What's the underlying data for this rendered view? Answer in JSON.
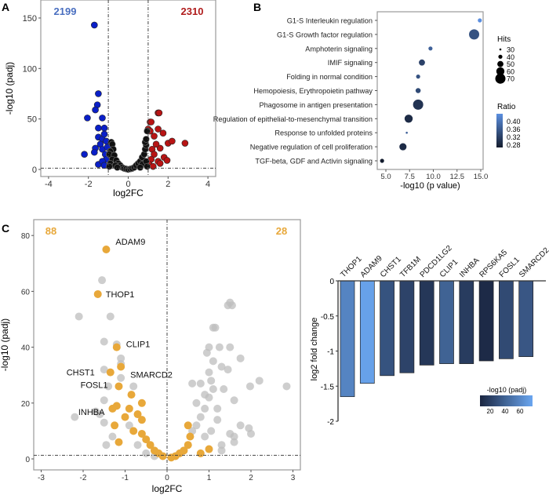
{
  "panels": {
    "a": "A",
    "b": "B",
    "c": "C"
  },
  "chart_data": [
    {
      "type": "scatter",
      "panel": "A",
      "xlabel": "log2FC",
      "ylabel": "-log10 (padj)",
      "xlim": [
        -4.4,
        4.4
      ],
      "ylim": [
        -7,
        168
      ],
      "xticks": [
        "-4",
        "-2",
        "0",
        "2",
        "4"
      ],
      "xtick_values": [
        -4,
        -2,
        0,
        2,
        4
      ],
      "yticks": [
        "0",
        "50",
        "100",
        "150"
      ],
      "ytick_values": [
        0,
        50,
        100,
        150
      ],
      "thresholds": {
        "log2fc": [
          -1,
          1
        ],
        "neg_log10_padj": 1.3
      },
      "annotations": [
        {
          "text": "2199",
          "color": "#4a6fc0"
        },
        {
          "text": "2310",
          "color": "#b01c1c"
        }
      ],
      "series": [
        {
          "color": "#0a1fc8",
          "points": [
            [
              -1.7,
              143
            ],
            [
              -1.5,
              75
            ],
            [
              -1.55,
              64
            ],
            [
              -1.65,
              59
            ],
            [
              -2.05,
              51
            ],
            [
              -1.3,
              51
            ],
            [
              -1.5,
              41
            ],
            [
              -1.2,
              41
            ],
            [
              -1.5,
              32
            ],
            [
              -1.3,
              30
            ],
            [
              -1.65,
              21
            ],
            [
              -1.7,
              17
            ],
            [
              -2.2,
              15
            ],
            [
              -1.5,
              5
            ],
            [
              -1.4,
              25
            ],
            [
              -1.2,
              35
            ],
            [
              -1.1,
              28
            ],
            [
              -1.3,
              20
            ],
            [
              -1.15,
              15
            ],
            [
              -1.1,
              10
            ],
            [
              -1.3,
              8
            ],
            [
              -1.05,
              22
            ],
            [
              -1.2,
              4
            ]
          ]
        },
        {
          "color": "#b81414",
          "points": [
            [
              1.5,
              56
            ],
            [
              1.55,
              56
            ],
            [
              1.1,
              47
            ],
            [
              1.15,
              47
            ],
            [
              1.0,
              40
            ],
            [
              1.1,
              38
            ],
            [
              1.5,
              40
            ],
            [
              1.75,
              36
            ],
            [
              1.3,
              33
            ],
            [
              2.0,
              26
            ],
            [
              2.2,
              28
            ],
            [
              2.85,
              26
            ],
            [
              1.6,
              21
            ],
            [
              1.8,
              12
            ],
            [
              1.95,
              9
            ],
            [
              1.5,
              8
            ],
            [
              1.4,
              25
            ],
            [
              1.2,
              20
            ],
            [
              1.3,
              15
            ],
            [
              1.15,
              10
            ],
            [
              1.05,
              5
            ],
            [
              1.6,
              6
            ],
            [
              1.25,
              3
            ]
          ]
        },
        {
          "color": "#111111",
          "points": [
            [
              -0.85,
              27
            ],
            [
              -0.8,
              25
            ],
            [
              -0.75,
              20
            ],
            [
              -0.9,
              18
            ],
            [
              -0.95,
              15
            ],
            [
              -0.7,
              14
            ],
            [
              -0.8,
              10
            ],
            [
              -0.6,
              9
            ],
            [
              -0.9,
              6
            ],
            [
              -0.5,
              6
            ],
            [
              -0.4,
              4
            ],
            [
              -0.65,
              4
            ],
            [
              -0.3,
              2
            ],
            [
              -0.2,
              1
            ],
            [
              -0.1,
              0.5
            ],
            [
              0,
              0
            ],
            [
              0.1,
              0.5
            ],
            [
              0.2,
              1
            ],
            [
              0.3,
              2
            ],
            [
              0.4,
              4
            ],
            [
              0.5,
              6
            ],
            [
              0.6,
              8
            ],
            [
              0.7,
              12
            ],
            [
              0.8,
              15
            ],
            [
              0.85,
              20
            ],
            [
              0.9,
              24
            ],
            [
              0.85,
              27
            ],
            [
              0.9,
              30
            ],
            [
              0.95,
              38
            ],
            [
              0.7,
              5
            ],
            [
              0.9,
              8
            ],
            [
              -0.95,
              3
            ],
            [
              0.95,
              3
            ],
            [
              -0.55,
              2
            ],
            [
              0.6,
              2
            ]
          ]
        }
      ]
    },
    {
      "type": "scatter",
      "panel": "B",
      "xlabel": "-log10 (p value)",
      "xlim": [
        4.2,
        15.5
      ],
      "xticks": [
        "5.0",
        "7.5",
        "10.0",
        "12.5",
        "15.0"
      ],
      "xtick_values": [
        5,
        7.5,
        10,
        12.5,
        15
      ],
      "categories": [
        "G1-S Interleukin regulation",
        "G1-S Growth factor regulation",
        "Amphoterin signaling",
        "IMIF signaling",
        "Folding in normal condition",
        "Hemopoiesis, Erythropoietin pathway",
        "Phagosome in antigen presentation",
        "Regulation of epithelial-to-mesenchymal transition",
        "Response to unfolded proteins",
        "Negative regulation of cell proliferation",
        "TGF-beta, GDF and Activin signaling"
      ],
      "x": [
        14.9,
        14.3,
        9.7,
        8.8,
        8.4,
        8.4,
        8.4,
        7.4,
        7.2,
        6.8,
        4.6
      ],
      "hits": [
        40,
        70,
        40,
        50,
        40,
        45,
        70,
        60,
        30,
        55,
        40
      ],
      "ratio": [
        0.42,
        0.34,
        0.36,
        0.32,
        0.34,
        0.33,
        0.3,
        0.29,
        0.36,
        0.29,
        0.27
      ],
      "size_legend": {
        "title": "Hits",
        "values": [
          "30",
          "40",
          "50",
          "60",
          "70"
        ]
      },
      "color_legend": {
        "title": "Ratio",
        "values": [
          "0.40",
          "0.36",
          "0.32",
          "0.28"
        ],
        "low": "#141c2e",
        "high": "#5b8fe0"
      }
    },
    {
      "type": "scatter",
      "panel": "C",
      "xlabel": "log2FC",
      "ylabel": "-log10 (padj)",
      "xlim": [
        -3.2,
        3.2
      ],
      "ylim": [
        -4,
        84
      ],
      "xticks": [
        "-3",
        "-2",
        "-1",
        "0",
        "1",
        "2",
        "3"
      ],
      "xtick_values": [
        -3,
        -2,
        -1,
        0,
        1,
        2,
        3
      ],
      "yticks": [
        "0",
        "20",
        "40",
        "60",
        "80"
      ],
      "ytick_values": [
        0,
        20,
        40,
        60,
        80
      ],
      "annotations": [
        {
          "text": "88",
          "color": "#e8a83a"
        },
        {
          "text": "28",
          "color": "#e8a83a"
        }
      ],
      "gene_labels": [
        {
          "text": "ADAM9",
          "x": -1.45,
          "y": 75
        },
        {
          "text": "THOP1",
          "x": -1.65,
          "y": 59
        },
        {
          "text": "CLIP1",
          "x": -1.2,
          "y": 40
        },
        {
          "text": "SMARCD2",
          "x": -1.1,
          "y": 33
        },
        {
          "text": "CHST1",
          "x": -1.35,
          "y": 31
        },
        {
          "text": "FOSL1",
          "x": -1.15,
          "y": 26
        },
        {
          "text": "INHBA",
          "x": -1.3,
          "y": 18
        }
      ],
      "series": [
        {
          "color": "#bdbdbd",
          "points": [
            [
              -1.55,
              64
            ],
            [
              -2.1,
              51
            ],
            [
              -1.35,
              51
            ],
            [
              -1.5,
              42
            ],
            [
              -1.2,
              41
            ],
            [
              -1.1,
              36
            ],
            [
              -1.1,
              34
            ],
            [
              -1.5,
              32
            ],
            [
              -1.1,
              29
            ],
            [
              -1.4,
              26
            ],
            [
              -0.8,
              26
            ],
            [
              -1.5,
              21
            ],
            [
              -1.7,
              17
            ],
            [
              -1.6,
              16
            ],
            [
              -2.2,
              15
            ],
            [
              -1.5,
              13
            ],
            [
              -1.45,
              5
            ],
            [
              -1.3,
              8
            ],
            [
              -0.7,
              5
            ],
            [
              -0.5,
              2
            ],
            [
              -0.9,
              12
            ],
            [
              -0.3,
              1
            ],
            [
              1.45,
              55
            ],
            [
              1.55,
              55
            ],
            [
              1.5,
              56
            ],
            [
              1.1,
              47
            ],
            [
              1.15,
              47
            ],
            [
              1.0,
              40
            ],
            [
              1.5,
              40
            ],
            [
              1.25,
              40
            ],
            [
              0.95,
              38
            ],
            [
              1.1,
              35
            ],
            [
              1.75,
              36
            ],
            [
              1.3,
              33
            ],
            [
              1.45,
              32
            ],
            [
              1.0,
              31
            ],
            [
              1.05,
              28
            ],
            [
              0.6,
              27
            ],
            [
              0.8,
              27
            ],
            [
              2.2,
              28
            ],
            [
              1.98,
              26
            ],
            [
              2.85,
              26
            ],
            [
              1.35,
              25
            ],
            [
              1.6,
              21
            ],
            [
              1.75,
              12
            ],
            [
              1.95,
              11
            ],
            [
              2.0,
              9
            ],
            [
              1.5,
              9
            ],
            [
              1.6,
              8
            ],
            [
              1.6,
              6
            ],
            [
              0.7,
              20
            ],
            [
              0.9,
              18
            ],
            [
              1.0,
              22
            ],
            [
              0.8,
              15
            ],
            [
              1.2,
              14
            ],
            [
              0.6,
              10
            ],
            [
              1.3,
              5
            ],
            [
              0.9,
              8
            ],
            [
              1.2,
              18
            ],
            [
              0.7,
              12
            ],
            [
              1.3,
              3
            ],
            [
              1.1,
              25
            ],
            [
              0.9,
              23
            ],
            [
              1.05,
              10
            ],
            [
              0.4,
              3
            ]
          ]
        },
        {
          "color": "#e8a83a",
          "points": [
            [
              -1.45,
              75
            ],
            [
              -1.65,
              59
            ],
            [
              -1.2,
              40
            ],
            [
              -1.1,
              33
            ],
            [
              -1.35,
              31
            ],
            [
              -1.15,
              26
            ],
            [
              -0.85,
              23
            ],
            [
              -0.6,
              20
            ],
            [
              -1.2,
              19
            ],
            [
              -1.3,
              18
            ],
            [
              -0.9,
              18
            ],
            [
              -1,
              15
            ],
            [
              -0.7,
              16
            ],
            [
              -0.6,
              14
            ],
            [
              -1.25,
              12
            ],
            [
              -0.8,
              10
            ],
            [
              -0.6,
              9
            ],
            [
              -1.15,
              6
            ],
            [
              -0.5,
              7
            ],
            [
              -0.4,
              5
            ],
            [
              -0.3,
              3
            ],
            [
              -0.2,
              2
            ],
            [
              -0.1,
              1
            ],
            [
              0.1,
              0.5
            ],
            [
              0.2,
              1
            ],
            [
              0.4,
              3
            ],
            [
              0.5,
              5
            ],
            [
              0.55,
              8
            ],
            [
              0.5,
              12
            ],
            [
              0.8,
              2
            ],
            [
              1.0,
              3.5
            ],
            [
              0.3,
              2
            ]
          ]
        }
      ]
    },
    {
      "type": "bar",
      "panel": "C-right",
      "ylabel": "log2 fold change",
      "ylim": [
        -2,
        0
      ],
      "yticks": [
        "0",
        "-0.5",
        "-1",
        "-1.5",
        "-2"
      ],
      "ytick_values": [
        0,
        -0.5,
        -1,
        -1.5,
        -2
      ],
      "categories": [
        "THOP1",
        "ADAM9",
        "CHST1",
        "TFB1M",
        "PDCD1LG2",
        "CLIP1",
        "INHBA",
        "RPS6KA5",
        "FOSL1",
        "SMARCD2"
      ],
      "values": [
        -1.65,
        -1.46,
        -1.35,
        -1.31,
        -1.2,
        -1.18,
        -1.18,
        -1.14,
        -1.11,
        -1.08
      ],
      "neg_log10_padj": [
        59,
        75,
        31,
        22,
        15,
        40,
        18,
        8,
        26,
        33
      ],
      "color_legend": {
        "title": "-log10 (padj)",
        "values": [
          "20",
          "40",
          "60"
        ],
        "range": [
          5,
          78
        ],
        "low": "#1a2540",
        "high": "#6aa6f0"
      }
    }
  ]
}
